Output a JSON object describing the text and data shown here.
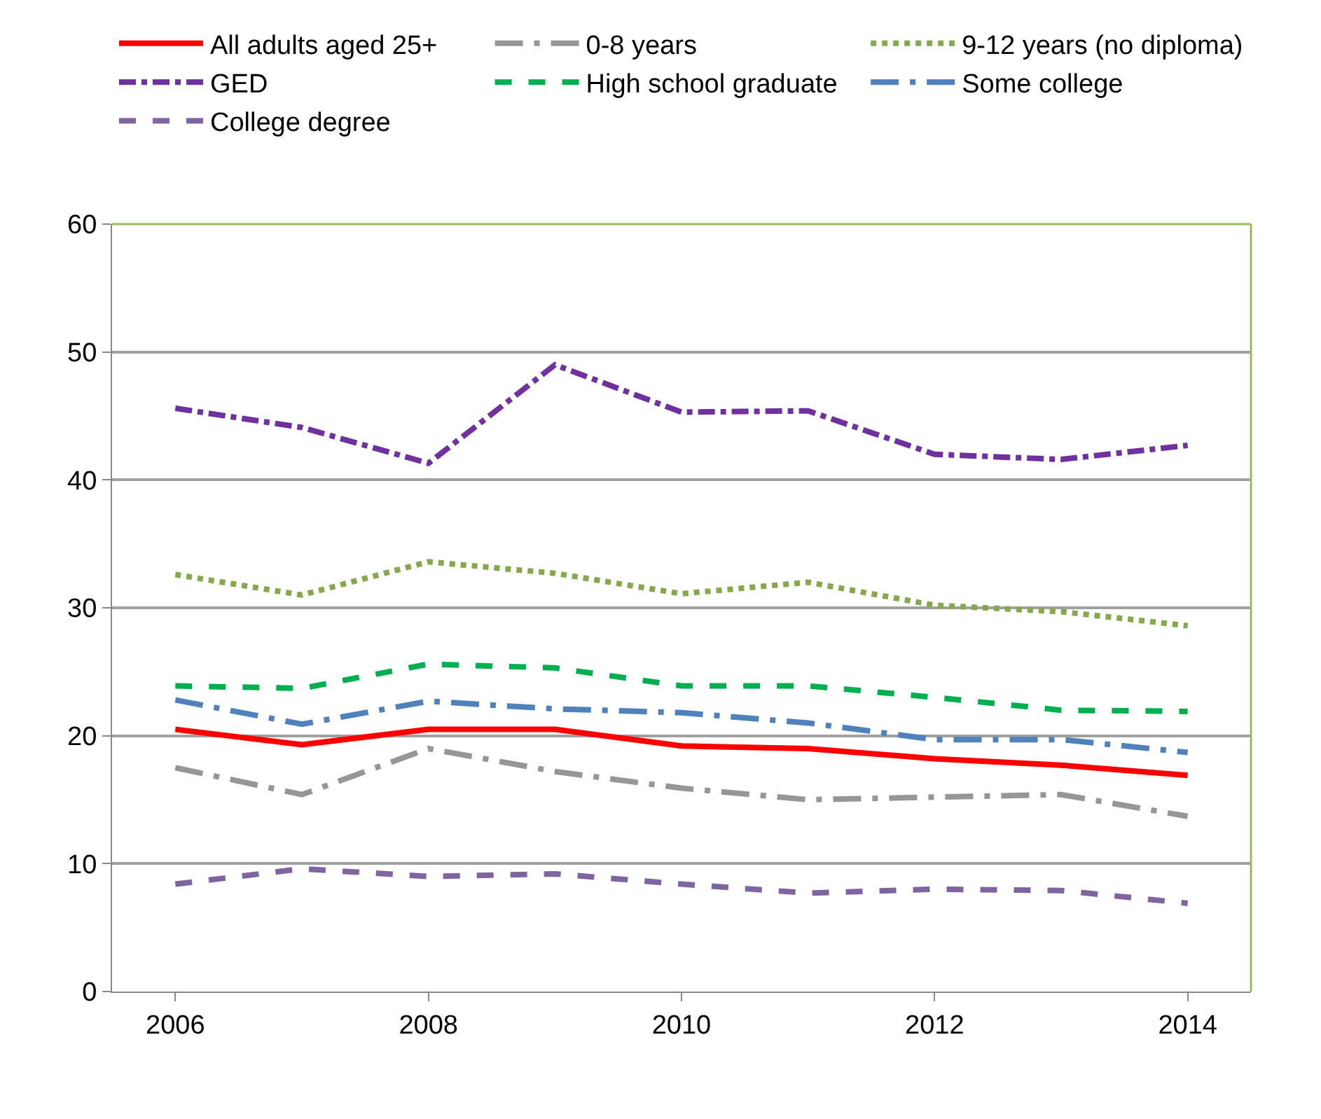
{
  "chart_data": {
    "type": "line",
    "x": [
      2006,
      2007,
      2008,
      2009,
      2010,
      2011,
      2012,
      2013,
      2014
    ],
    "xlim": [
      2005.5,
      2014.5
    ],
    "xticks": [
      2006,
      2008,
      2010,
      2012,
      2014
    ],
    "ylim": [
      0,
      60
    ],
    "yticks": [
      0,
      10,
      20,
      30,
      40,
      50,
      60
    ],
    "grid": "y",
    "legend": "top",
    "marker": "none",
    "series": [
      {
        "name": "All adults aged 25+",
        "color": "#ff0000",
        "line_style": "solid",
        "values": [
          20.5,
          19.3,
          20.5,
          20.5,
          19.2,
          19.0,
          18.2,
          17.7,
          16.9
        ]
      },
      {
        "name": "0-8 years",
        "color": "#969696",
        "line_style": "longdashdot",
        "values": [
          17.5,
          15.4,
          19.0,
          17.2,
          15.9,
          15.0,
          15.2,
          15.4,
          13.7
        ]
      },
      {
        "name": "9-12 years (no diploma)",
        "color": "#86a84a",
        "line_style": "dotted",
        "values": [
          32.6,
          31.0,
          33.6,
          32.7,
          31.1,
          32.0,
          30.2,
          29.7,
          28.6
        ]
      },
      {
        "name": "GED",
        "color": "#7030a0",
        "line_style": "dashdotdot",
        "values": [
          45.6,
          44.1,
          41.3,
          49.0,
          45.3,
          45.4,
          42.0,
          41.6,
          42.7
        ]
      },
      {
        "name": "High school graduate",
        "color": "#00b050",
        "line_style": "dashed",
        "values": [
          23.9,
          23.7,
          25.6,
          25.3,
          23.9,
          23.9,
          23.0,
          22.0,
          21.9
        ]
      },
      {
        "name": "Some college",
        "color": "#4f81bd",
        "line_style": "longdashdot",
        "values": [
          22.8,
          20.9,
          22.7,
          22.1,
          21.8,
          21.0,
          19.7,
          19.7,
          18.7
        ]
      },
      {
        "name": "College degree",
        "color": "#8064a2",
        "line_style": "dashed",
        "values": [
          8.4,
          9.6,
          9.0,
          9.2,
          8.4,
          7.7,
          8.0,
          7.9,
          6.9
        ]
      }
    ]
  }
}
